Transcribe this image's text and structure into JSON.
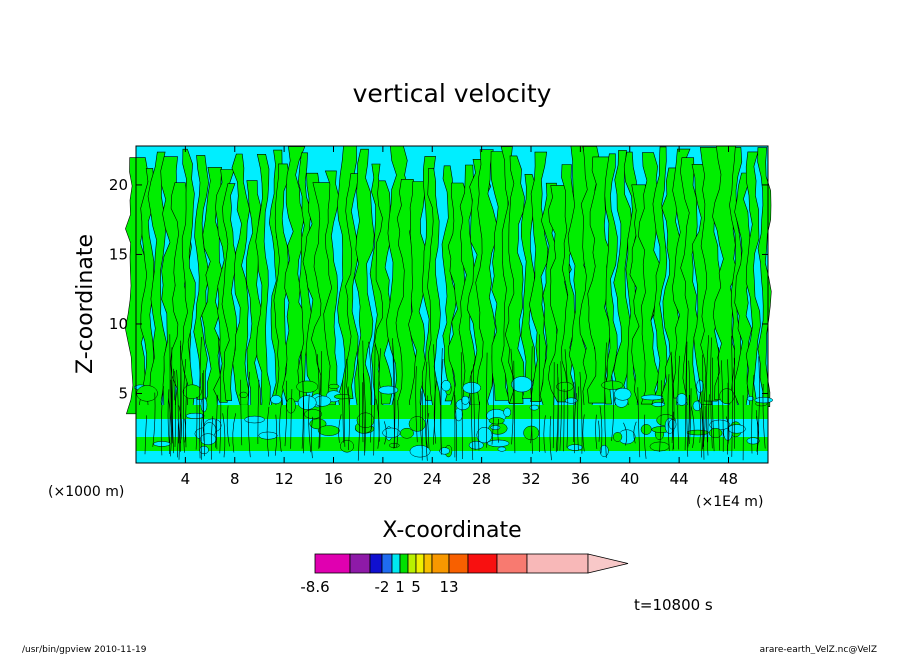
{
  "chart_data": {
    "type": "heatmap",
    "title": "vertical velocity",
    "xlabel": "X-coordinate",
    "ylabel": "Z-coordinate",
    "x_unit_left": "(×1000 m)",
    "x_unit_right": "(×1E4 m)",
    "xlim": [
      0,
      51.2
    ],
    "ylim": [
      0,
      22.8
    ],
    "x_ticks": [
      "4",
      "8",
      "12",
      "16",
      "20",
      "24",
      "28",
      "32",
      "36",
      "40",
      "44",
      "48"
    ],
    "y_ticks": [
      "5",
      "10",
      "15",
      "20"
    ],
    "x_tick_values": [
      4,
      8,
      12,
      16,
      20,
      24,
      28,
      32,
      36,
      40,
      44,
      48
    ],
    "y_tick_values": [
      5,
      10,
      15,
      20
    ],
    "colorbar": {
      "colors": [
        "#e000b0",
        "#8e1aa8",
        "#1010d0",
        "#1f6cf0",
        "#00e8f0",
        "#00e000",
        "#b8f000",
        "#f0f000",
        "#f8c000",
        "#f89800",
        "#f86000",
        "#f81010",
        "#f87a70",
        "#f8b8b8",
        "#f8c8c8"
      ],
      "labels": [
        "-8.6",
        "-2",
        "1",
        "5",
        "13"
      ],
      "label_positions": [
        0,
        3,
        5,
        7,
        10
      ]
    },
    "field_colors": {
      "positive": "#00ee00",
      "negative": "#00eeff"
    },
    "time_label": "t=10800 s"
  },
  "footer": {
    "left": "/usr/bin/gpview   2010-11-19",
    "right": "arare-earth_VelZ.nc@VelZ"
  }
}
